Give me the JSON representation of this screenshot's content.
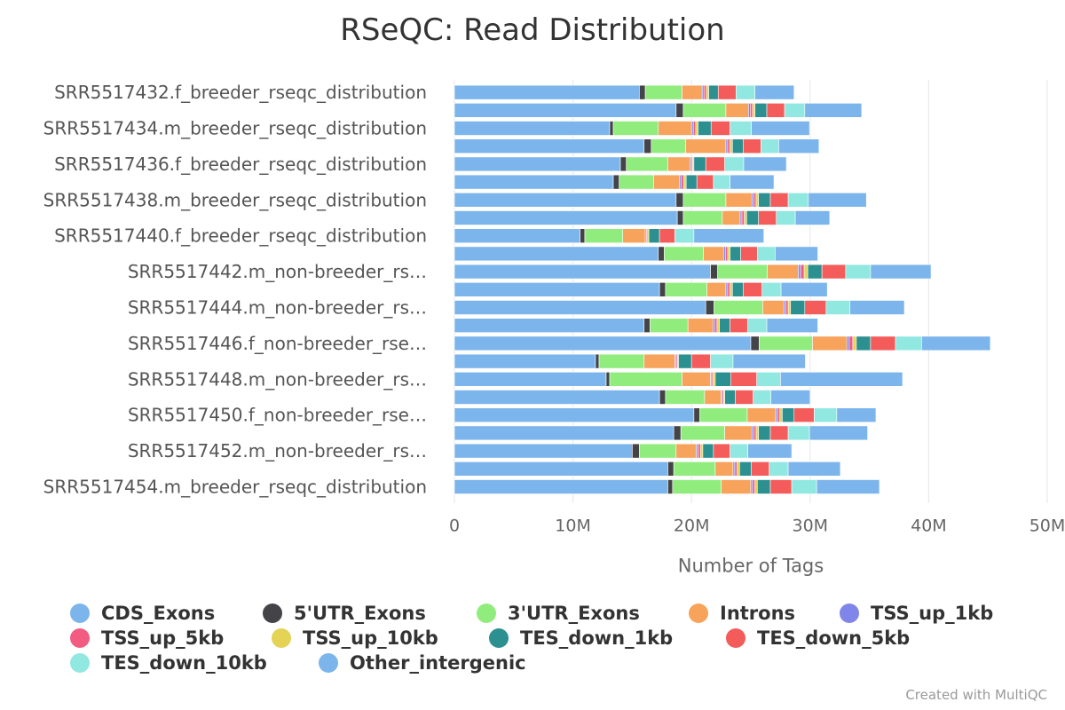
{
  "page": {
    "title": "RSeQC: Read Distribution",
    "credit": "Created with MultiQC"
  },
  "chart_data": {
    "type": "bar",
    "orientation": "horizontal",
    "stacked": true,
    "title": "RSeQC: Read Distribution",
    "xlabel": "Number of Tags",
    "ylabel": "",
    "xlim": [
      0,
      50000000
    ],
    "x_ticks": [
      {
        "value": 0,
        "label": "0"
      },
      {
        "value": 10000000,
        "label": "10M"
      },
      {
        "value": 20000000,
        "label": "20M"
      },
      {
        "value": 30000000,
        "label": "30M"
      },
      {
        "value": 40000000,
        "label": "40M"
      },
      {
        "value": 50000000,
        "label": "50M"
      }
    ],
    "grid": true,
    "legend_position": "bottom",
    "categories": [
      "SRR5517432.f_breeder_rseqc_distribution",
      "",
      "SRR5517434.m_breeder_rseqc_distribution",
      "",
      "SRR5517436.f_breeder_rseqc_distribution",
      "",
      "SRR5517438.m_breeder_rseqc_distribution",
      "",
      "SRR5517440.f_breeder_rseqc_distribution",
      "",
      "SRR5517442.m_non-breeder_rs…",
      "",
      "SRR5517444.m_non-breeder_rs…",
      "",
      "SRR5517446.f_non-breeder_rse…",
      "",
      "SRR5517448.m_non-breeder_rs…",
      "",
      "SRR5517450.f_non-breeder_rse…",
      "",
      "SRR5517452.m_non-breeder_rs…",
      "",
      "SRR5517454.m_breeder_rseqc_distribution"
    ],
    "series": [
      {
        "name": "CDS_Exons",
        "color": "#7cb5ec",
        "values": [
          15.6,
          18.7,
          13.1,
          16.0,
          14.0,
          13.4,
          18.7,
          18.8,
          10.6,
          17.2,
          21.6,
          17.3,
          21.2,
          16.0,
          25.0,
          11.9,
          12.8,
          17.3,
          20.2,
          18.5,
          15.0,
          18.0,
          18.0
        ]
      },
      {
        "name": "5'UTR_Exons",
        "color": "#434348",
        "values": [
          0.5,
          0.6,
          0.3,
          0.6,
          0.5,
          0.5,
          0.6,
          0.5,
          0.4,
          0.5,
          0.6,
          0.5,
          0.7,
          0.5,
          0.7,
          0.3,
          0.3,
          0.5,
          0.5,
          0.6,
          0.6,
          0.5,
          0.4
        ]
      },
      {
        "name": "3'UTR_Exons",
        "color": "#90ed7d",
        "values": [
          3.1,
          3.6,
          3.8,
          2.9,
          3.5,
          2.9,
          3.6,
          3.3,
          3.2,
          3.3,
          4.2,
          3.5,
          4.1,
          3.2,
          4.5,
          3.8,
          6.1,
          3.3,
          4.0,
          3.7,
          3.1,
          3.5,
          4.1
        ]
      },
      {
        "name": "Introns",
        "color": "#f7a35c",
        "values": [
          1.7,
          1.9,
          2.8,
          3.4,
          1.9,
          2.2,
          2.2,
          1.5,
          1.9,
          1.7,
          2.6,
          1.6,
          1.8,
          2.1,
          2.9,
          2.6,
          2.4,
          1.4,
          2.4,
          2.3,
          1.7,
          1.5,
          2.5
        ]
      },
      {
        "name": "TSS_up_1kb",
        "color": "#8085e9",
        "values": [
          0.15,
          0.15,
          0.15,
          0.15,
          0.1,
          0.15,
          0.15,
          0.15,
          0.1,
          0.15,
          0.2,
          0.15,
          0.15,
          0.15,
          0.2,
          0.1,
          0.1,
          0.1,
          0.15,
          0.15,
          0.15,
          0.15,
          0.15
        ]
      },
      {
        "name": "TSS_up_5kb",
        "color": "#f15c80",
        "values": [
          0.2,
          0.2,
          0.2,
          0.2,
          0.1,
          0.2,
          0.2,
          0.2,
          0.1,
          0.2,
          0.3,
          0.2,
          0.2,
          0.2,
          0.3,
          0.1,
          0.1,
          0.1,
          0.2,
          0.2,
          0.2,
          0.2,
          0.2
        ]
      },
      {
        "name": "TSS_up_10kb",
        "color": "#e4d354",
        "values": [
          0.2,
          0.2,
          0.2,
          0.2,
          0.1,
          0.2,
          0.2,
          0.2,
          0.1,
          0.2,
          0.3,
          0.2,
          0.2,
          0.2,
          0.3,
          0.1,
          0.2,
          0.1,
          0.2,
          0.2,
          0.2,
          0.2,
          0.2
        ]
      },
      {
        "name": "TES_down_1kb",
        "color": "#2b908f",
        "values": [
          0.8,
          1.0,
          1.1,
          0.9,
          1.0,
          0.9,
          1.0,
          1.0,
          0.9,
          0.9,
          1.2,
          0.9,
          1.2,
          0.9,
          1.2,
          1.1,
          1.3,
          0.9,
          1.0,
          1.0,
          0.9,
          1.0,
          1.1
        ]
      },
      {
        "name": "TES_down_5kb",
        "color": "#f45b5b",
        "values": [
          1.5,
          1.5,
          1.6,
          1.5,
          1.6,
          1.4,
          1.5,
          1.5,
          1.3,
          1.4,
          2.0,
          1.6,
          1.8,
          1.5,
          2.1,
          1.6,
          2.2,
          1.5,
          1.7,
          1.5,
          1.4,
          1.5,
          1.8
        ]
      },
      {
        "name": "TES_down_10kb",
        "color": "#91e8e1",
        "values": [
          1.6,
          1.7,
          1.8,
          1.5,
          1.6,
          1.4,
          1.7,
          1.6,
          1.6,
          1.5,
          2.1,
          1.6,
          2.0,
          1.6,
          2.2,
          1.9,
          2.0,
          1.5,
          1.9,
          1.8,
          1.5,
          1.6,
          2.1
        ]
      },
      {
        "name": "Other_intergenic",
        "color": "#7cb5ec",
        "values": [
          3.3,
          4.8,
          4.9,
          3.4,
          3.6,
          3.7,
          4.9,
          2.9,
          5.9,
          3.6,
          5.1,
          3.9,
          4.6,
          4.3,
          5.8,
          6.1,
          10.3,
          3.3,
          3.3,
          4.9,
          3.7,
          4.4,
          5.3
        ]
      }
    ]
  }
}
